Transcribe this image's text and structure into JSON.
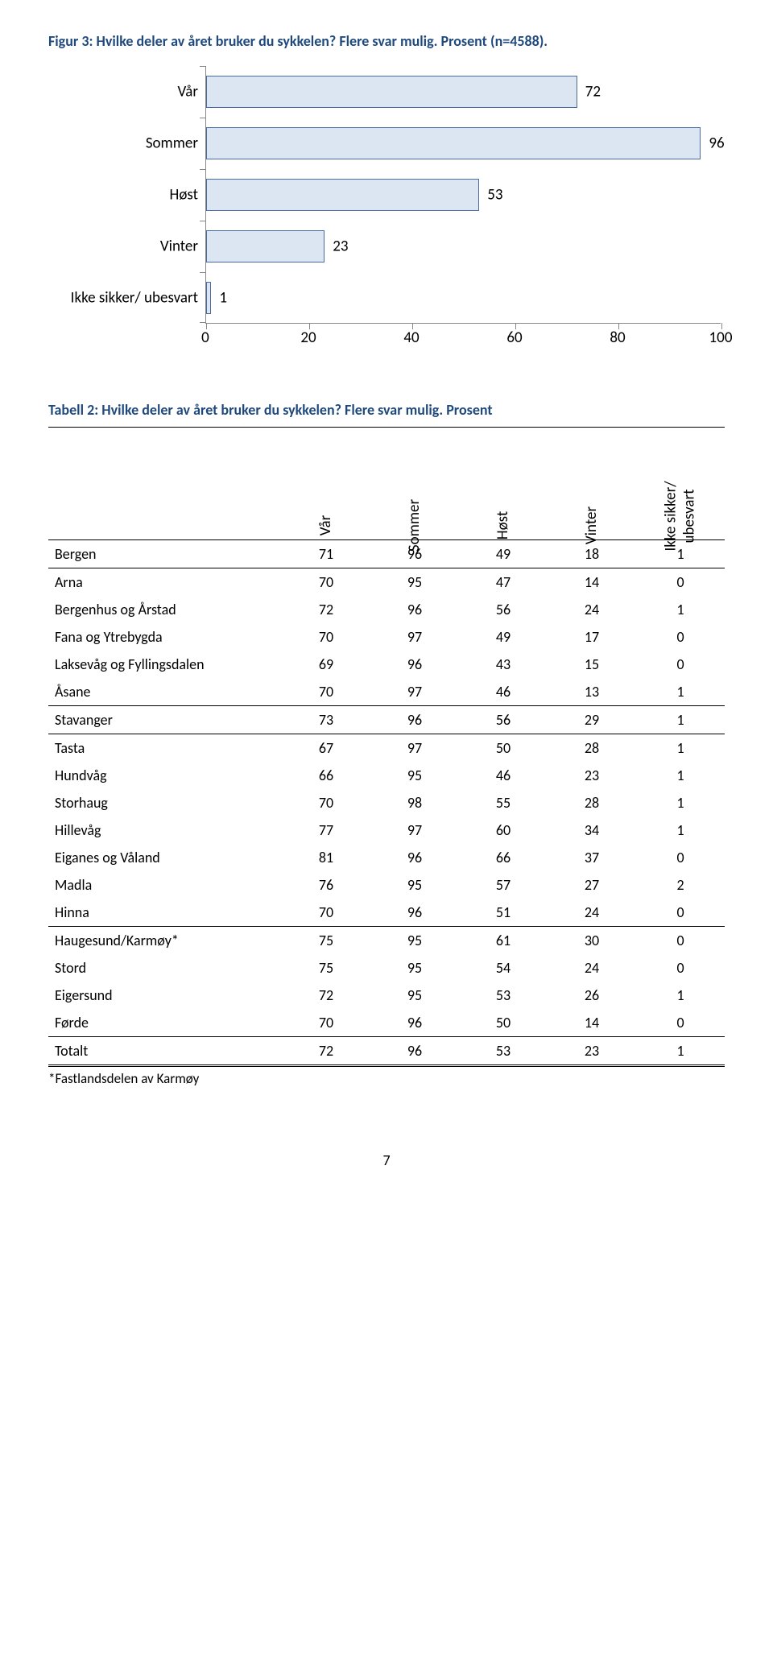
{
  "figure": {
    "title": "Figur 3: Hvilke deler av året bruker du sykkelen? Flere svar mulig. Prosent (n=4588).",
    "bar_fill": "#dce6f2",
    "bar_border": "#4a6a9a",
    "max": 100,
    "ticks": [
      0,
      20,
      40,
      60,
      80,
      100
    ],
    "bars": [
      {
        "label": "Vår",
        "value": 72
      },
      {
        "label": "Sommer",
        "value": 96
      },
      {
        "label": "Høst",
        "value": 53
      },
      {
        "label": "Vinter",
        "value": 23
      },
      {
        "label": "Ikke sikker/ ubesvart",
        "value": 1
      }
    ]
  },
  "table": {
    "title": "Tabell 2: Hvilke deler av året bruker du sykkelen? Flere svar mulig. Prosent",
    "columns": [
      "Vår",
      "Sommer",
      "Høst",
      "Vinter",
      "Ikke sikker/ ubesvart"
    ],
    "rows": [
      {
        "region": "Bergen",
        "vals": [
          71,
          96,
          49,
          18,
          1
        ],
        "cls": "section-top bold section"
      },
      {
        "region": "Arna",
        "vals": [
          70,
          95,
          47,
          14,
          0
        ],
        "cls": "sub"
      },
      {
        "region": "Bergenhus og Årstad",
        "vals": [
          72,
          96,
          56,
          24,
          1
        ],
        "cls": "sub"
      },
      {
        "region": "Fana og Ytrebygda",
        "vals": [
          70,
          97,
          49,
          17,
          0
        ],
        "cls": "sub"
      },
      {
        "region": "Laksevåg og Fyllingsdalen",
        "vals": [
          69,
          96,
          43,
          15,
          0
        ],
        "cls": "sub"
      },
      {
        "region": "Åsane",
        "vals": [
          70,
          97,
          46,
          13,
          1
        ],
        "cls": "sub section"
      },
      {
        "region": "Stavanger",
        "vals": [
          73,
          96,
          56,
          29,
          1
        ],
        "cls": "bold section"
      },
      {
        "region": "Tasta",
        "vals": [
          67,
          97,
          50,
          28,
          1
        ],
        "cls": "sub"
      },
      {
        "region": "Hundvåg",
        "vals": [
          66,
          95,
          46,
          23,
          1
        ],
        "cls": "sub"
      },
      {
        "region": "Storhaug",
        "vals": [
          70,
          98,
          55,
          28,
          1
        ],
        "cls": "sub"
      },
      {
        "region": "Hillevåg",
        "vals": [
          77,
          97,
          60,
          34,
          1
        ],
        "cls": "sub"
      },
      {
        "region": "Eiganes og Våland",
        "vals": [
          81,
          96,
          66,
          37,
          0
        ],
        "cls": "sub"
      },
      {
        "region": "Madla",
        "vals": [
          76,
          95,
          57,
          27,
          2
        ],
        "cls": "sub"
      },
      {
        "region": "Hinna",
        "vals": [
          70,
          96,
          51,
          24,
          0
        ],
        "cls": "sub section"
      },
      {
        "region": "Haugesund/Karmøy*",
        "vals": [
          75,
          95,
          61,
          30,
          0
        ],
        "cls": "bold"
      },
      {
        "region": "Stord",
        "vals": [
          75,
          95,
          54,
          24,
          0
        ],
        "cls": "bold"
      },
      {
        "region": "Eigersund",
        "vals": [
          72,
          95,
          53,
          26,
          1
        ],
        "cls": "bold"
      },
      {
        "region": "Førde",
        "vals": [
          70,
          96,
          50,
          14,
          0
        ],
        "cls": "bold"
      },
      {
        "region": "Totalt",
        "vals": [
          72,
          96,
          53,
          23,
          1
        ],
        "cls": "total bold"
      }
    ],
    "footnote": "*Fastlandsdelen av Karmøy"
  },
  "page_number": "7"
}
